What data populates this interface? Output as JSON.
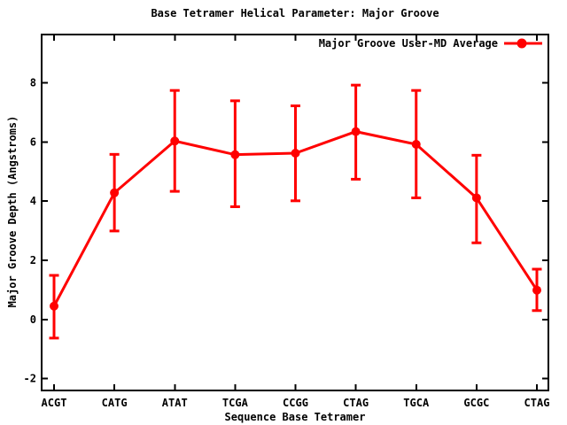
{
  "chart_data": {
    "type": "line",
    "error_bars": true,
    "title": "Base Tetramer Helical Parameter: Major Groove",
    "xlabel": "Sequence Base Tetramer",
    "ylabel": "Major Groove Depth (Angstroms)",
    "categories": [
      "ACGT",
      "CATG",
      "ATAT",
      "TCGA",
      "CCGG",
      "CTAG",
      "TGCA",
      "GCGC",
      "CTAG"
    ],
    "series": [
      {
        "name": "Major Groove User-MD Average",
        "color": "#ff0000",
        "marker": "filled-circle",
        "values": [
          0.45,
          4.28,
          6.03,
          5.57,
          5.62,
          6.35,
          5.92,
          4.11,
          0.99
        ],
        "err_low": [
          -0.63,
          2.99,
          4.33,
          3.81,
          4.01,
          4.74,
          4.11,
          2.59,
          0.3
        ],
        "err_high": [
          1.49,
          5.58,
          7.74,
          7.39,
          7.22,
          7.92,
          7.74,
          5.55,
          1.7
        ]
      }
    ],
    "yticks": [
      -2,
      0,
      2,
      4,
      6,
      8
    ],
    "ylim": [
      -2.4,
      9.63
    ],
    "grid": false,
    "legend": {
      "label": "Major Groove User-MD Average",
      "position": "top-right-inside"
    },
    "colors": {
      "series": "#ff0000",
      "axis": "#000000",
      "text": "#000000",
      "background": "#ffffff"
    }
  }
}
